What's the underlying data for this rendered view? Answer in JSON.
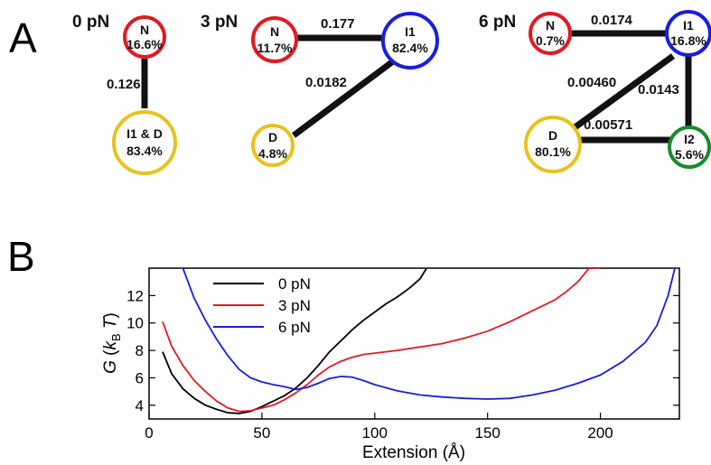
{
  "panels": {
    "a_label": "A",
    "b_label": "B"
  },
  "network": {
    "colors": {
      "N": "#e01b24",
      "I1": "#1a1fd6",
      "D": "#e6c31e",
      "I2": "#1b8a2a",
      "edge": "#111111"
    },
    "groups": [
      {
        "force": "0 pN",
        "nodes": [
          {
            "id": "N",
            "name": "N",
            "pct": "16.6%"
          },
          {
            "id": "D",
            "name": "I1 & D",
            "pct": "83.4%"
          }
        ],
        "edges": [
          {
            "label": "0.126"
          }
        ]
      },
      {
        "force": "3 pN",
        "nodes": [
          {
            "id": "N",
            "name": "N",
            "pct": "11.7%"
          },
          {
            "id": "I1",
            "name": "I1",
            "pct": "82.4%"
          },
          {
            "id": "D",
            "name": "D",
            "pct": "4.8%"
          }
        ],
        "edges": [
          {
            "label": "0.177"
          },
          {
            "label": "0.0182"
          }
        ]
      },
      {
        "force": "6 pN",
        "nodes": [
          {
            "id": "N",
            "name": "N",
            "pct": "0.7%"
          },
          {
            "id": "I1",
            "name": "I1",
            "pct": "16.8%"
          },
          {
            "id": "D",
            "name": "D",
            "pct": "80.1%"
          },
          {
            "id": "I2",
            "name": "I2",
            "pct": "5.6%"
          }
        ],
        "edges": [
          {
            "label": "0.0174"
          },
          {
            "label": "0.00460"
          },
          {
            "label": "0.0143"
          },
          {
            "label": "0.00571"
          }
        ]
      }
    ]
  },
  "chart_data": {
    "type": "line",
    "xlabel": "Extension (Å)",
    "ylabel_main": "G (k",
    "ylabel_sub": "B",
    "ylabel_end": " T)",
    "xlim": [
      0,
      235
    ],
    "ylim": [
      3,
      14
    ],
    "xticks": [
      0,
      50,
      100,
      150,
      200
    ],
    "yticks": [
      4,
      6,
      8,
      10,
      12
    ],
    "legend_position": "top-left",
    "series": [
      {
        "name": "0 pN",
        "color": "#000000",
        "x": [
          6,
          10,
          15,
          20,
          25,
          30,
          35,
          40,
          45,
          50,
          55,
          60,
          65,
          70,
          75,
          80,
          85,
          90,
          95,
          100,
          105,
          110,
          115,
          120,
          123
        ],
        "y": [
          7.9,
          6.3,
          5.2,
          4.5,
          4.0,
          3.7,
          3.45,
          3.4,
          3.55,
          3.9,
          4.3,
          4.7,
          5.25,
          6.0,
          6.9,
          7.9,
          8.7,
          9.5,
          10.2,
          10.8,
          11.4,
          11.9,
          12.5,
          13.2,
          14.0
        ]
      },
      {
        "name": "3 pN",
        "color": "#e01b24",
        "x": [
          6,
          10,
          15,
          20,
          25,
          30,
          35,
          40,
          45,
          50,
          55,
          60,
          65,
          70,
          75,
          80,
          85,
          90,
          95,
          100,
          110,
          120,
          130,
          140,
          150,
          160,
          170,
          180,
          185,
          190,
          195,
          200
        ],
        "y": [
          10.1,
          8.3,
          6.9,
          5.8,
          5.0,
          4.3,
          3.8,
          3.55,
          3.6,
          3.8,
          4.0,
          4.4,
          4.9,
          5.5,
          6.2,
          6.8,
          7.2,
          7.5,
          7.7,
          7.8,
          8.0,
          8.25,
          8.5,
          8.9,
          9.4,
          10.1,
          10.9,
          11.7,
          12.3,
          13.0,
          14.0,
          14.0
        ]
      },
      {
        "name": "6 pN",
        "color": "#1a1fd6",
        "x": [
          15,
          20,
          25,
          30,
          35,
          40,
          45,
          50,
          55,
          60,
          65,
          70,
          75,
          80,
          85,
          90,
          95,
          100,
          110,
          120,
          130,
          140,
          150,
          160,
          170,
          180,
          190,
          200,
          210,
          220,
          225,
          230,
          233
        ],
        "y": [
          14.0,
          11.8,
          10.2,
          8.8,
          7.6,
          6.6,
          6.0,
          5.7,
          5.5,
          5.35,
          5.15,
          5.3,
          5.6,
          5.95,
          6.1,
          6.05,
          5.8,
          5.5,
          5.05,
          4.75,
          4.6,
          4.5,
          4.45,
          4.5,
          4.75,
          5.1,
          5.6,
          6.2,
          7.2,
          8.6,
          9.8,
          12.0,
          14.0
        ]
      }
    ]
  }
}
